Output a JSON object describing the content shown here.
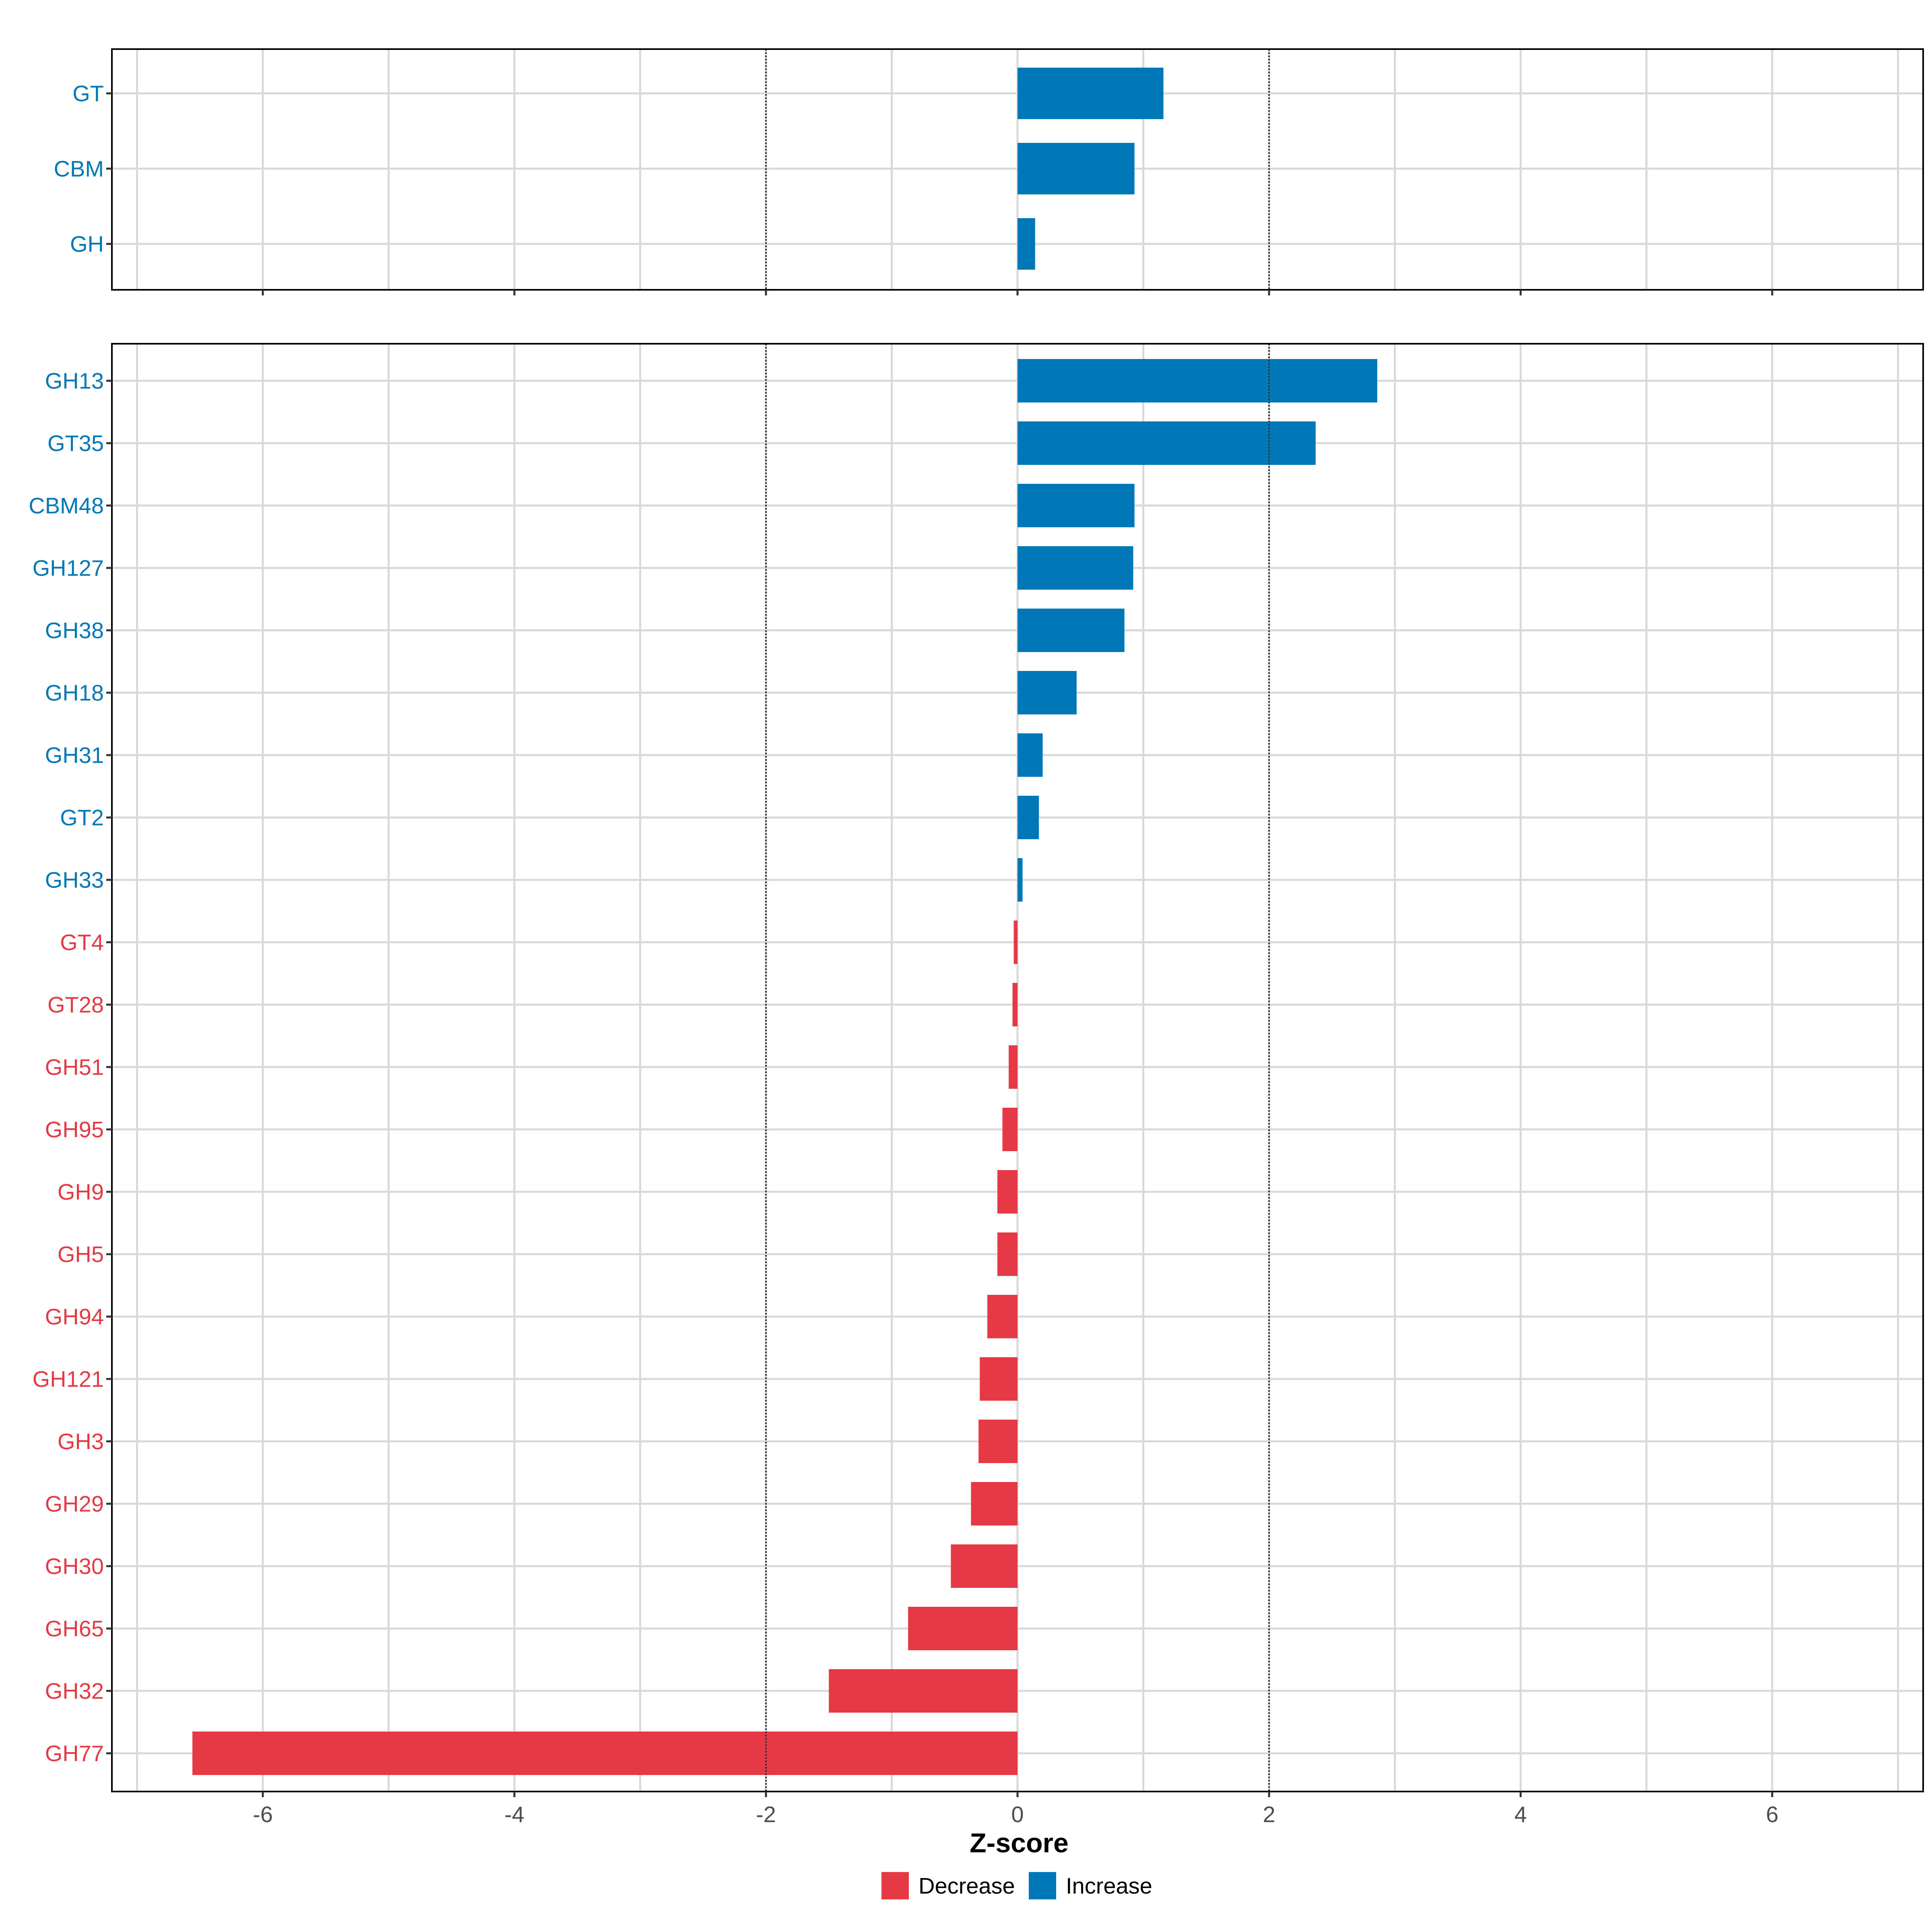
{
  "colors": {
    "decrease": "#E63946",
    "increase": "#0077B6",
    "grid": "#D9D9D9",
    "frame": "#000000",
    "tick_text": "#4D4D4D",
    "reference_line": "#333333"
  },
  "legend": {
    "position": "bottom",
    "items": [
      {
        "label": "Decrease",
        "color": "#E63946"
      },
      {
        "label": "Increase",
        "color": "#0077B6"
      }
    ]
  },
  "chart_data": {
    "type": "bar",
    "orientation": "horizontal",
    "xlabel": "Z-score",
    "xlim": [
      -7.2,
      7.2
    ],
    "xticks": [
      -6,
      -4,
      -2,
      0,
      2,
      4,
      6
    ],
    "reference_lines": [
      -2,
      2
    ],
    "grid": true,
    "panels": [
      {
        "name": "top",
        "categories": [
          "GT",
          "CBM",
          "GH"
        ],
        "values": [
          1.16,
          0.93,
          0.14
        ],
        "groups": [
          "Increase",
          "Increase",
          "Increase"
        ]
      },
      {
        "name": "bottom",
        "categories": [
          "GH13",
          "GT35",
          "CBM48",
          "GH127",
          "GH38",
          "GH18",
          "GH31",
          "GT2",
          "GH33",
          "GT4",
          "GT28",
          "GH51",
          "GH95",
          "GH9",
          "GH5",
          "GH94",
          "GH121",
          "GH3",
          "GH29",
          "GH30",
          "GH65",
          "GH32",
          "GH77"
        ],
        "values": [
          2.86,
          2.37,
          0.93,
          0.92,
          0.85,
          0.47,
          0.2,
          0.17,
          0.04,
          -0.03,
          -0.04,
          -0.07,
          -0.12,
          -0.16,
          -0.16,
          -0.24,
          -0.3,
          -0.31,
          -0.37,
          -0.53,
          -0.87,
          -1.5,
          -6.56
        ],
        "groups": [
          "Increase",
          "Increase",
          "Increase",
          "Increase",
          "Increase",
          "Increase",
          "Increase",
          "Increase",
          "Increase",
          "Decrease",
          "Decrease",
          "Decrease",
          "Decrease",
          "Decrease",
          "Decrease",
          "Decrease",
          "Decrease",
          "Decrease",
          "Decrease",
          "Decrease",
          "Decrease",
          "Decrease",
          "Decrease"
        ]
      }
    ]
  }
}
